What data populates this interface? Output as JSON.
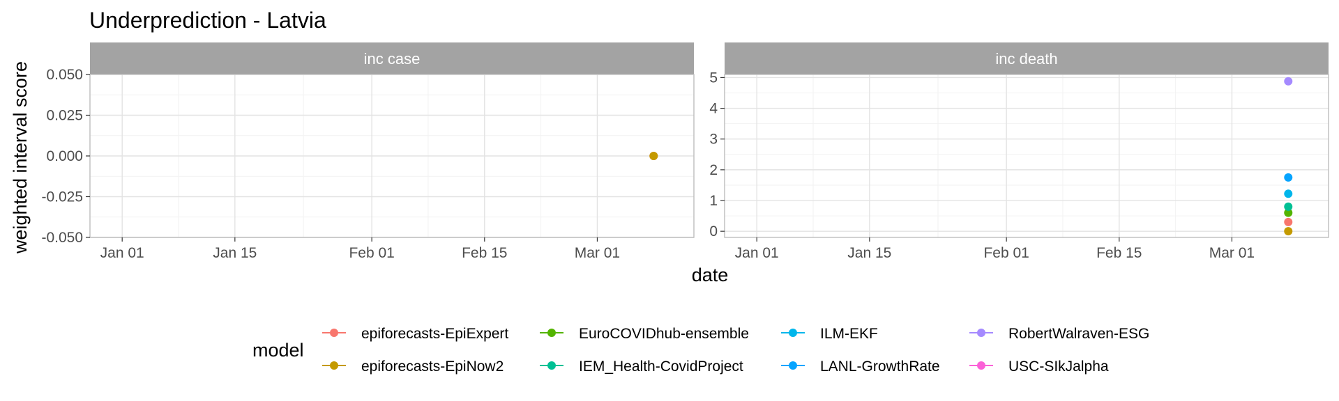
{
  "title": "Underprediction - Latvia",
  "xlabel": "date",
  "ylabel": "weighted interval score",
  "legend": {
    "title": "model",
    "entries": [
      {
        "name": "epiforecasts-EpiExpert",
        "color": "#F8766D"
      },
      {
        "name": "epiforecasts-EpiNow2",
        "color": "#C49A00"
      },
      {
        "name": "EuroCOVIDhub-ensemble",
        "color": "#53B400"
      },
      {
        "name": "IEM_Health-CovidProject",
        "color": "#00C094"
      },
      {
        "name": "ILM-EKF",
        "color": "#00B6EB"
      },
      {
        "name": "LANL-GrowthRate",
        "color": "#06A4FF"
      },
      {
        "name": "RobertWalraven-ESG",
        "color": "#A58AFF"
      },
      {
        "name": "USC-SIkJalpha",
        "color": "#FB61D7"
      }
    ]
  },
  "chart_data": [
    {
      "type": "scatter",
      "panel": "inc case",
      "x_ticks": [
        "Jan 01",
        "Jan 15",
        "Feb 01",
        "Feb 15",
        "Mar 01"
      ],
      "x_tick_dates": [
        "2021-01-01",
        "2021-01-15",
        "2021-02-01",
        "2021-02-15",
        "2021-03-01"
      ],
      "xlim": [
        "2020-12-28",
        "2021-03-13"
      ],
      "y_ticks": [
        "-0.050",
        "-0.025",
        "0.000",
        "0.025",
        "0.050"
      ],
      "ylim": [
        -0.05,
        0.05
      ],
      "grid": true,
      "series": [
        {
          "name": "epiforecasts-EpiExpert",
          "points": [
            {
              "x": "2021-03-08",
              "y": 0
            }
          ]
        },
        {
          "name": "epiforecasts-EpiNow2",
          "points": [
            {
              "x": "2021-03-08",
              "y": 0
            }
          ]
        }
      ]
    },
    {
      "type": "scatter",
      "panel": "inc death",
      "x_ticks": [
        "Jan 01",
        "Jan 15",
        "Feb 01",
        "Feb 15",
        "Mar 01"
      ],
      "x_tick_dates": [
        "2021-01-01",
        "2021-01-15",
        "2021-02-01",
        "2021-02-15",
        "2021-03-01"
      ],
      "xlim": [
        "2020-12-28",
        "2021-03-13"
      ],
      "y_ticks": [
        "0",
        "1",
        "2",
        "3",
        "4",
        "5"
      ],
      "ylim": [
        -0.2,
        5.1
      ],
      "grid": true,
      "series": [
        {
          "name": "epiforecasts-EpiExpert",
          "points": [
            {
              "x": "2021-03-08",
              "y": 0.3
            }
          ]
        },
        {
          "name": "epiforecasts-EpiNow2",
          "points": [
            {
              "x": "2021-03-08",
              "y": 0.0
            }
          ]
        },
        {
          "name": "EuroCOVIDhub-ensemble",
          "points": [
            {
              "x": "2021-03-08",
              "y": 0.6
            }
          ]
        },
        {
          "name": "IEM_Health-CovidProject",
          "points": [
            {
              "x": "2021-03-08",
              "y": 0.8
            }
          ]
        },
        {
          "name": "ILM-EKF",
          "points": [
            {
              "x": "2021-03-08",
              "y": 1.22
            }
          ]
        },
        {
          "name": "LANL-GrowthRate",
          "points": [
            {
              "x": "2021-03-08",
              "y": 1.75
            }
          ]
        },
        {
          "name": "RobertWalraven-ESG",
          "points": [
            {
              "x": "2021-03-08",
              "y": 4.88
            }
          ]
        }
      ]
    }
  ]
}
